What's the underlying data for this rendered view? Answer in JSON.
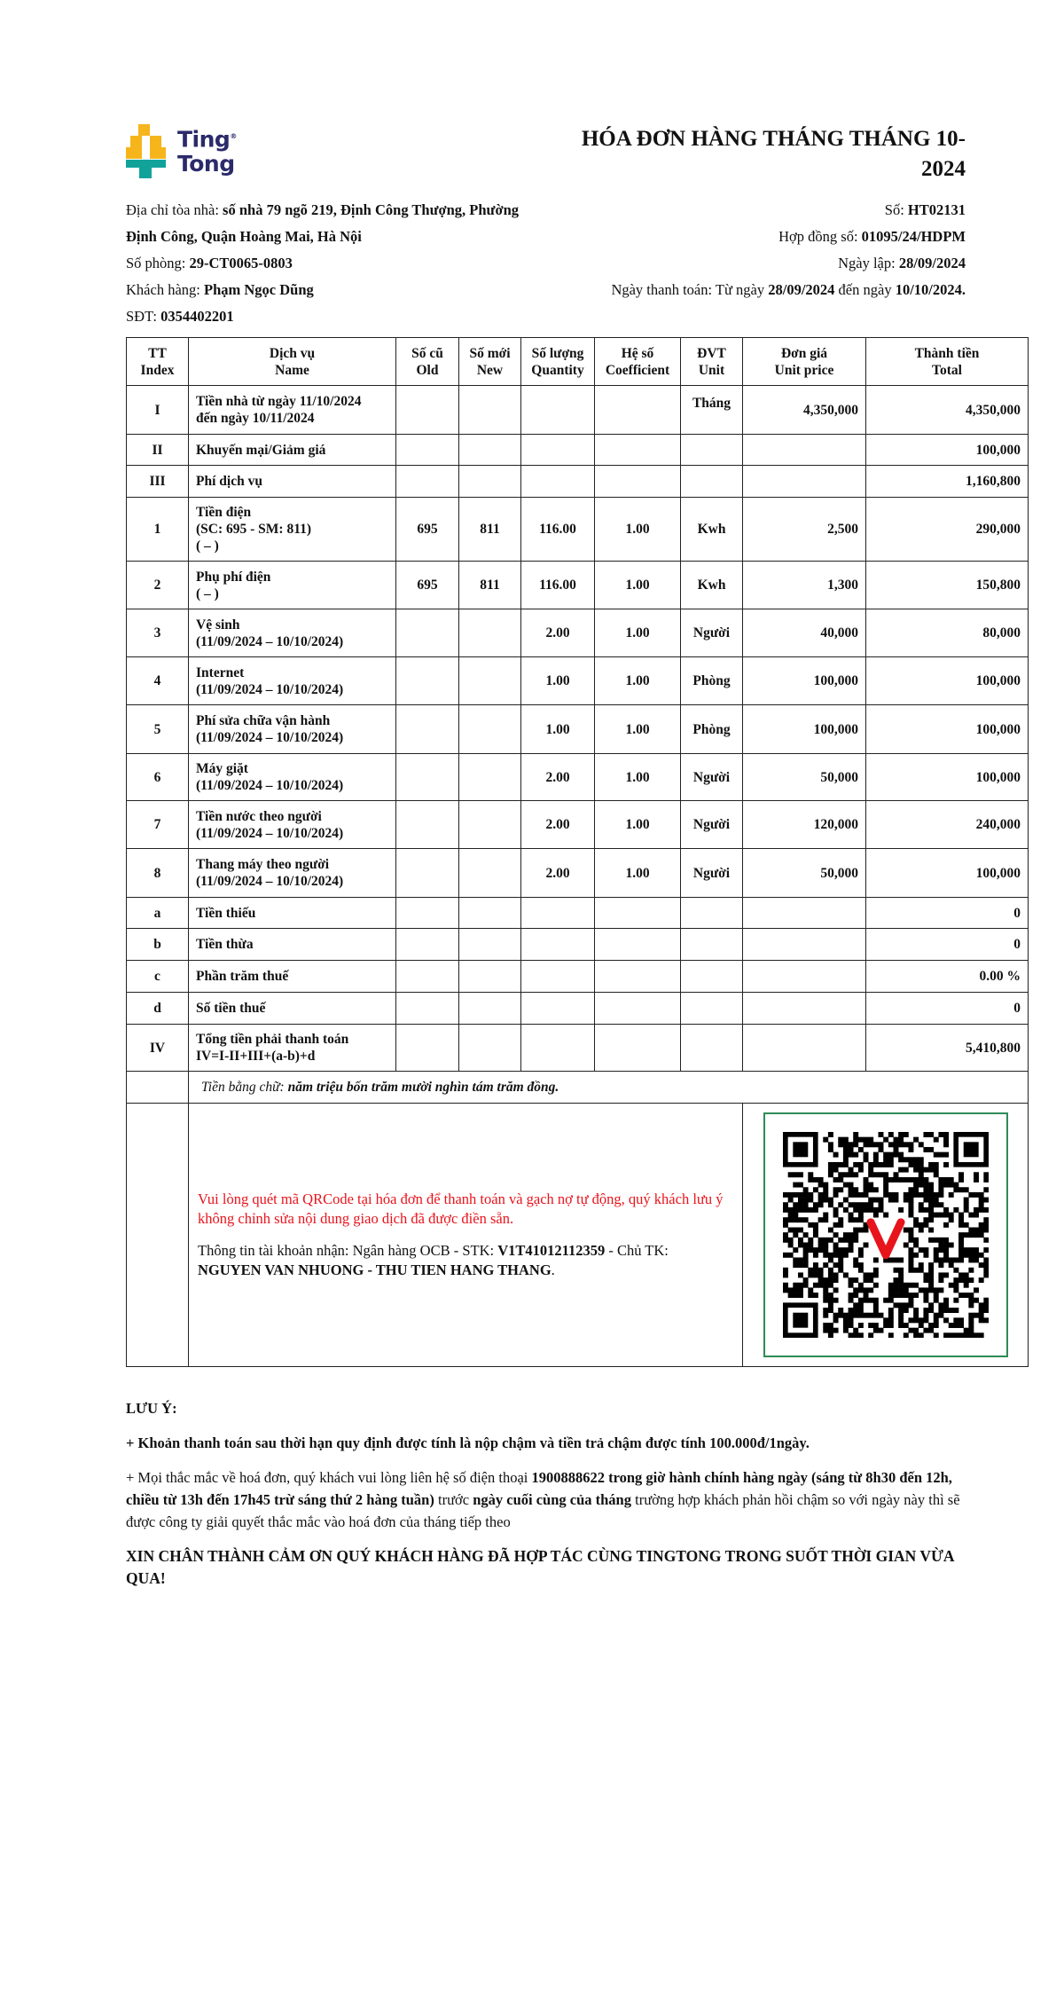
{
  "brand": {
    "name_line1": "Ting",
    "name_line2": "Tong",
    "colors": {
      "yellow": "#f7b51c",
      "teal": "#11a39a",
      "navy": "#2b2a6b"
    }
  },
  "title": "HÓA ĐƠN HÀNG THÁNG THÁNG 10-2024",
  "info": {
    "address_label": "Địa chỉ tòa nhà: ",
    "address_line1": "số nhà 79 ngõ 219, Định Công Thượng, Phường",
    "address_line2": "Định Công, Quận Hoàng Mai, Hà Nội",
    "room_label": "Số phòng: ",
    "room": "29-CT0065-0803",
    "customer_label": "Khách hàng: ",
    "customer": "Phạm Ngọc Dũng",
    "phone_label": "SĐT: ",
    "phone": "0354402201",
    "no_label": "Số: ",
    "no": "HT02131",
    "contract_label": "Hợp đồng số: ",
    "contract": "01095/24/HDPM",
    "created_label": "Ngày lập: ",
    "created": "28/09/2024",
    "pay_label": "Ngày thanh toán: Từ ngày ",
    "pay_from": "28/09/2024",
    "pay_mid": " đến ngày ",
    "pay_to": "10/10/2024."
  },
  "table": {
    "headers": [
      [
        "TT",
        "Index"
      ],
      [
        "Dịch vụ",
        "Name"
      ],
      [
        "Số cũ",
        "Old"
      ],
      [
        "Số mới",
        "New"
      ],
      [
        "Số lượng",
        "Quantity"
      ],
      [
        "Hệ số",
        "Coefficient"
      ],
      [
        "ĐVT",
        "Unit"
      ],
      [
        "Đơn giá",
        "Unit price"
      ],
      [
        "Thành tiền",
        "Total"
      ]
    ],
    "rows": [
      {
        "idx": "I",
        "name": [
          "Tiền nhà từ ngày 11/10/2024",
          "đến ngày 10/11/2024"
        ],
        "old": "",
        "new": "",
        "qty": "",
        "coef": "",
        "unit": "Tháng",
        "price": "4,350,000",
        "total": "4,350,000"
      },
      {
        "idx": "II",
        "name": [
          "Khuyến mại/Giảm giá"
        ],
        "old": "",
        "new": "",
        "qty": "",
        "coef": "",
        "unit": "",
        "price": "",
        "total": "100,000"
      },
      {
        "idx": "III",
        "name": [
          "Phí dịch vụ"
        ],
        "old": "",
        "new": "",
        "qty": "",
        "coef": "",
        "unit": "",
        "price": "",
        "total": "1,160,800"
      },
      {
        "idx": "1",
        "name": [
          "Tiền điện",
          "(SC: 695 - SM: 811)",
          "( – )"
        ],
        "old": "695",
        "new": "811",
        "qty": "116.00",
        "coef": "1.00",
        "unit": "Kwh",
        "price": "2,500",
        "total": "290,000"
      },
      {
        "idx": "2",
        "name": [
          "Phụ phí điện",
          "( – )"
        ],
        "old": "695",
        "new": "811",
        "qty": "116.00",
        "coef": "1.00",
        "unit": "Kwh",
        "price": "1,300",
        "total": "150,800"
      },
      {
        "idx": "3",
        "name": [
          "Vệ sinh",
          "(11/09/2024 – 10/10/2024)"
        ],
        "old": "",
        "new": "",
        "qty": "2.00",
        "coef": "1.00",
        "unit": "Người",
        "price": "40,000",
        "total": "80,000"
      },
      {
        "idx": "4",
        "name": [
          "Internet",
          "(11/09/2024 – 10/10/2024)"
        ],
        "old": "",
        "new": "",
        "qty": "1.00",
        "coef": "1.00",
        "unit": "Phòng",
        "price": "100,000",
        "total": "100,000"
      },
      {
        "idx": "5",
        "name": [
          "Phí sửa chữa vận hành",
          "(11/09/2024 – 10/10/2024)"
        ],
        "old": "",
        "new": "",
        "qty": "1.00",
        "coef": "1.00",
        "unit": "Phòng",
        "price": "100,000",
        "total": "100,000"
      },
      {
        "idx": "6",
        "name": [
          "Máy giặt",
          "(11/09/2024 – 10/10/2024)"
        ],
        "old": "",
        "new": "",
        "qty": "2.00",
        "coef": "1.00",
        "unit": "Người",
        "price": "50,000",
        "total": "100,000"
      },
      {
        "idx": "7",
        "name": [
          "Tiền nước theo người",
          "(11/09/2024 – 10/10/2024)"
        ],
        "old": "",
        "new": "",
        "qty": "2.00",
        "coef": "1.00",
        "unit": "Người",
        "price": "120,000",
        "total": "240,000"
      },
      {
        "idx": "8",
        "name": [
          "Thang máy theo người",
          "(11/09/2024 – 10/10/2024)"
        ],
        "old": "",
        "new": "",
        "qty": "2.00",
        "coef": "1.00",
        "unit": "Người",
        "price": "50,000",
        "total": "100,000"
      },
      {
        "idx": "a",
        "name": [
          "Tiền thiếu"
        ],
        "old": "",
        "new": "",
        "qty": "",
        "coef": "",
        "unit": "",
        "price": "",
        "total": "0"
      },
      {
        "idx": "b",
        "name": [
          "Tiền thừa"
        ],
        "old": "",
        "new": "",
        "qty": "",
        "coef": "",
        "unit": "",
        "price": "",
        "total": "0"
      },
      {
        "idx": "c",
        "name": [
          "Phần trăm thuế"
        ],
        "old": "",
        "new": "",
        "qty": "",
        "coef": "",
        "unit": "",
        "price": "",
        "total": "0.00 %"
      },
      {
        "idx": "d",
        "name": [
          "Số tiền thuế"
        ],
        "old": "",
        "new": "",
        "qty": "",
        "coef": "",
        "unit": "",
        "price": "",
        "total": "0"
      },
      {
        "idx": "IV",
        "name": [
          "Tổng tiền phải thanh toán",
          "IV=I-II+III+(a-b)+d"
        ],
        "old": "",
        "new": "",
        "qty": "",
        "coef": "",
        "unit": "",
        "price": "",
        "total": "5,410,800"
      }
    ],
    "words_label": "Tiền bằng chữ: ",
    "words_value": "năm triệu bốn trăm mười nghìn tám trăm đồng."
  },
  "payment": {
    "qr_notice": "Vui lòng quét mã QRCode tại hóa đơn để thanh toán và gạch nợ tự động, quý khách lưu ý không chỉnh sửa nội dung giao dịch đã được điền sẵn.",
    "account_label": "Thông tin tài khoản nhận: Ngân hàng OCB - STK: ",
    "account_no": "V1T41012112359",
    "owner_label": " - Chủ TK: ",
    "owner": "NGUYEN VAN NHUONG - THU TIEN HANG THANG",
    "owner_end": ".",
    "qr_icon": "qr-code",
    "qr_border_color": "#2e8b57",
    "notice_color": "#e8141c"
  },
  "notes": {
    "heading": "LƯU Ý:",
    "note1": "+ Khoản thanh toán sau thời hạn quy định được tính là nộp chậm và tiền trả chậm được tính 100.000đ/1ngày.",
    "note2_a": "+ Mọi thắc mắc về hoá đơn, quý khách vui lòng liên hệ số điện thoại ",
    "note2_b": "1900888622 trong giờ hành chính hàng ngày (sáng từ 8h30 đến 12h, chiều từ 13h đến 17h45 trừ sáng thứ 2 hàng tuần)",
    "note2_c": " trước ",
    "note2_d": "ngày cuối cùng của tháng",
    "note2_e": " trường hợp khách phản hồi chậm so với ngày này thì sẽ được công ty giải quyết thắc mắc vào hoá đơn của tháng tiếp theo",
    "thanks": "XIN CHÂN THÀNH CẢM ƠN QUÝ KHÁCH HÀNG ĐÃ HỢP TÁC CÙNG TINGTONG TRONG SUỐT THỜI GIAN VỪA QUA!"
  }
}
